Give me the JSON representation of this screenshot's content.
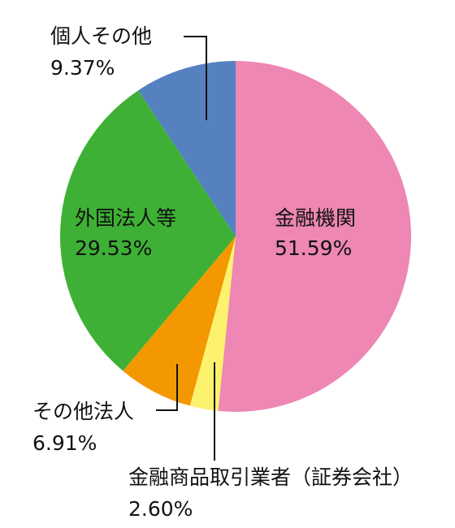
{
  "chart_data": {
    "type": "pie",
    "start": "12 o'clock",
    "direction": "clockwise",
    "slices": [
      {
        "label": "金融機関",
        "value": 51.59,
        "value_text": "51.59%",
        "color": "#ee87b3"
      },
      {
        "label": "金融商品取引業者（証券会社）",
        "value": 2.6,
        "value_text": "2.60%",
        "color": "#fdf26d"
      },
      {
        "label": "その他法人",
        "value": 6.91,
        "value_text": "6.91%",
        "color": "#f39800"
      },
      {
        "label": "外国法人等",
        "value": 29.53,
        "value_text": "29.53%",
        "color": "#3eb035"
      },
      {
        "label": "個人その他",
        "value": 9.37,
        "value_text": "9.37%",
        "color": "#5581c0"
      }
    ]
  }
}
